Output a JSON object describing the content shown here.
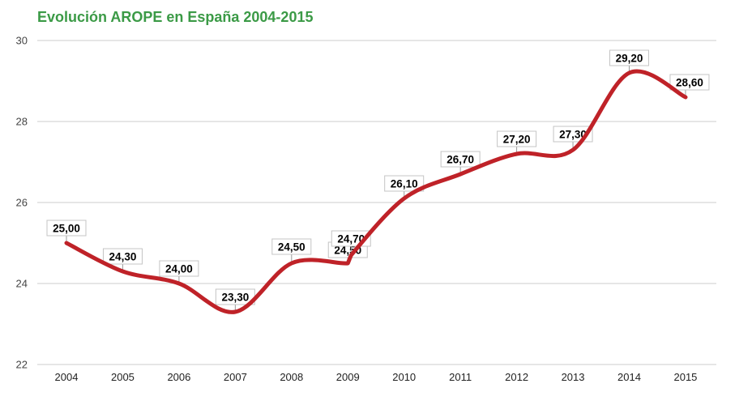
{
  "header": {
    "title": "Evolución AROPE en España 2004-2015"
  },
  "colors": {
    "title": "#3B9A46",
    "line": "#BF2228",
    "grid": "#CCCCCC",
    "annotation_bg": "#FFFFFF",
    "annotation_border": "#C4C4C4",
    "annotation_text": "#000000",
    "stem": "#999999",
    "y_tick_text": "#444444",
    "x_tick_text": "#222222",
    "background": "#FFFFFF"
  },
  "chart_data": {
    "type": "line",
    "title": "Evolución AROPE en España 2004-2015",
    "xlabel": "",
    "ylabel": "",
    "line_shape": "smooth",
    "grid": true,
    "legend": "none",
    "ylim": [
      22,
      30
    ],
    "y_ticks": [
      "30",
      "28",
      "26",
      "24",
      "22"
    ],
    "y_tick_values": [
      30,
      28,
      26,
      24,
      22
    ],
    "x_ticks": [
      "2004",
      "2005",
      "2006",
      "2007",
      "2008",
      "2009",
      "2010",
      "2011",
      "2012",
      "2013",
      "2014",
      "2015"
    ],
    "series": [
      {
        "name": "AROPE",
        "color": "#BF2228",
        "points": [
          {
            "year": 2004,
            "value": 25.0,
            "label": "25,00"
          },
          {
            "year": 2005,
            "value": 24.3,
            "label": "24,30"
          },
          {
            "year": 2006,
            "value": 24.0,
            "label": "24,00"
          },
          {
            "year": 2007,
            "value": 23.3,
            "label": "23,30"
          },
          {
            "year": 2008,
            "value": 24.5,
            "label": "24,50",
            "gap": 11
          },
          {
            "year": 2009,
            "value": 24.5,
            "label": "24,50",
            "gap": 7
          },
          {
            "year": 2009,
            "value": 24.7,
            "label": "24,70",
            "gap": 11
          },
          {
            "year": 2010,
            "value": 26.1,
            "label": "26,10"
          },
          {
            "year": 2011,
            "value": 26.7,
            "label": "26,70"
          },
          {
            "year": 2012,
            "value": 27.2,
            "label": "27,20"
          },
          {
            "year": 2013,
            "value": 27.3,
            "label": "27,30",
            "gap": 10
          },
          {
            "year": 2014,
            "value": 29.2,
            "label": "29,20"
          },
          {
            "year": 2015,
            "value": 28.6,
            "label": "28,60",
            "label_dx": 5
          }
        ]
      }
    ]
  }
}
